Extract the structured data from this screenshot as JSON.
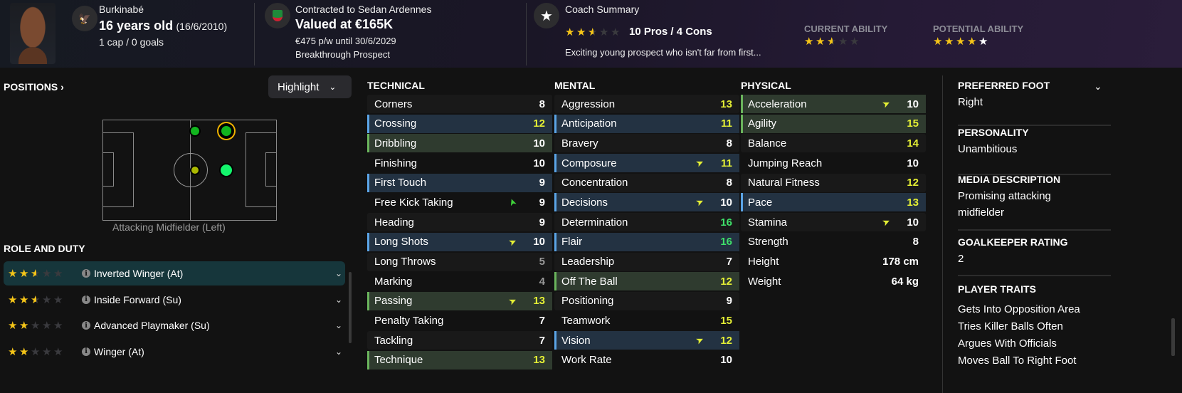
{
  "header": {
    "nationality": "Burkinabé",
    "age": "16 years old",
    "dob": "(16/6/2010)",
    "caps": "1 cap / 0 goals",
    "contract": "Contracted to Sedan Ardennes",
    "value": "Valued at €165K",
    "wage": "€475 p/w until 30/6/2029",
    "status": "Breakthrough Prospect",
    "coach_title": "Coach Summary",
    "coach_stars": 2.5,
    "pros_cons": "10 Pros / 4 Cons",
    "coach_text": "Exciting young prospect who isn't far from first...",
    "ca_label": "CURRENT ABILITY",
    "ca_stars": 2.5,
    "pa_label": "POTENTIAL ABILITY",
    "pa_stars": 4,
    "pa_range_stars": 1
  },
  "positions": {
    "title": "POSITIONS",
    "highlight_label": "Highlight",
    "position_name": "Attacking Midfielder (Left)",
    "dots": [
      {
        "role": "AM L",
        "color": "#11b51e",
        "selected": false
      },
      {
        "role": "ST L",
        "color": "#11b51e",
        "selected": true
      },
      {
        "role": "AM C",
        "color": "#aab800",
        "selected": false
      },
      {
        "role": "ST C",
        "color": "#13f56c",
        "selected": false
      }
    ]
  },
  "roles": {
    "title": "ROLE AND DUTY",
    "items": [
      {
        "label": "Inverted Winger (At)",
        "stars": 2.5,
        "selected": true
      },
      {
        "label": "Inside Forward (Su)",
        "stars": 2.5,
        "selected": false
      },
      {
        "label": "Advanced Playmaker (Su)",
        "stars": 2,
        "selected": false
      },
      {
        "label": "Winger (At)",
        "stars": 2,
        "selected": false
      }
    ]
  },
  "attributes": [
    {
      "title": "TECHNICAL",
      "rows": [
        {
          "name": "Corners",
          "value": "8"
        },
        {
          "name": "Crossing",
          "value": "12",
          "hl": "blue"
        },
        {
          "name": "Dribbling",
          "value": "10",
          "hl": "green"
        },
        {
          "name": "Finishing",
          "value": "10"
        },
        {
          "name": "First Touch",
          "value": "9",
          "hl": "blue"
        },
        {
          "name": "Free Kick Taking",
          "value": "9",
          "arrow": "green"
        },
        {
          "name": "Heading",
          "value": "9"
        },
        {
          "name": "Long Shots",
          "value": "10",
          "hl": "blue",
          "arrow": "yellow"
        },
        {
          "name": "Long Throws",
          "value": "5"
        },
        {
          "name": "Marking",
          "value": "4"
        },
        {
          "name": "Passing",
          "value": "13",
          "hl": "green",
          "arrow": "yellow"
        },
        {
          "name": "Penalty Taking",
          "value": "7"
        },
        {
          "name": "Tackling",
          "value": "7"
        },
        {
          "name": "Technique",
          "value": "13",
          "hl": "green"
        }
      ]
    },
    {
      "title": "MENTAL",
      "rows": [
        {
          "name": "Aggression",
          "value": "13"
        },
        {
          "name": "Anticipation",
          "value": "11",
          "hl": "blue"
        },
        {
          "name": "Bravery",
          "value": "8"
        },
        {
          "name": "Composure",
          "value": "11",
          "hl": "blue",
          "arrow": "yellow"
        },
        {
          "name": "Concentration",
          "value": "8"
        },
        {
          "name": "Decisions",
          "value": "10",
          "hl": "blue",
          "arrow": "yellow"
        },
        {
          "name": "Determination",
          "value": "16"
        },
        {
          "name": "Flair",
          "value": "16",
          "hl": "blue"
        },
        {
          "name": "Leadership",
          "value": "7"
        },
        {
          "name": "Off The Ball",
          "value": "12",
          "hl": "green"
        },
        {
          "name": "Positioning",
          "value": "9"
        },
        {
          "name": "Teamwork",
          "value": "15"
        },
        {
          "name": "Vision",
          "value": "12",
          "hl": "blue",
          "arrow": "yellow"
        },
        {
          "name": "Work Rate",
          "value": "10"
        }
      ]
    },
    {
      "title": "PHYSICAL",
      "rows": [
        {
          "name": "Acceleration",
          "value": "10",
          "hl": "green",
          "arrow": "yellow"
        },
        {
          "name": "Agility",
          "value": "15",
          "hl": "green"
        },
        {
          "name": "Balance",
          "value": "14"
        },
        {
          "name": "Jumping Reach",
          "value": "10"
        },
        {
          "name": "Natural Fitness",
          "value": "12"
        },
        {
          "name": "Pace",
          "value": "13",
          "hl": "blue"
        },
        {
          "name": "Stamina",
          "value": "10",
          "arrow": "yellow"
        },
        {
          "name": "Strength",
          "value": "8"
        },
        {
          "name": "Height",
          "value": "178 cm",
          "plain": true
        },
        {
          "name": "Weight",
          "value": "64 kg",
          "plain": true
        }
      ]
    }
  ],
  "info": {
    "foot_label": "PREFERRED FOOT",
    "foot": "Right",
    "personality_label": "PERSONALITY",
    "personality": "Unambitious",
    "media_label": "MEDIA DESCRIPTION",
    "media": "Promising attacking midfielder",
    "gk_label": "GOALKEEPER RATING",
    "gk": "2",
    "traits_label": "PLAYER TRAITS",
    "traits": [
      "Gets Into Opposition Area",
      "Tries Killer Balls Often",
      "Argues With Officials",
      "Moves Ball To Right Foot"
    ]
  }
}
